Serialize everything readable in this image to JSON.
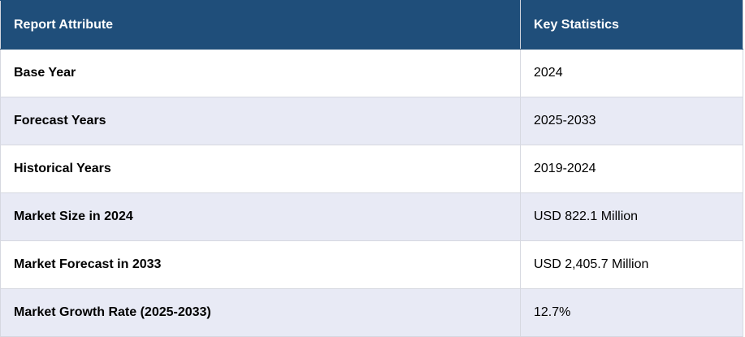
{
  "table": {
    "header": [
      "Report Attribute",
      "Key Statistics"
    ],
    "rows": [
      [
        "Base Year",
        "2024"
      ],
      [
        "Forecast Years",
        "2025-2033"
      ],
      [
        "Historical Years",
        "2019-2024"
      ],
      [
        "Market Size in 2024",
        "USD 822.1 Million"
      ],
      [
        "Market Forecast in 2033",
        "USD 2,405.7 Million"
      ],
      [
        "Market Growth Rate (2025-2033)",
        "12.7%"
      ]
    ]
  }
}
